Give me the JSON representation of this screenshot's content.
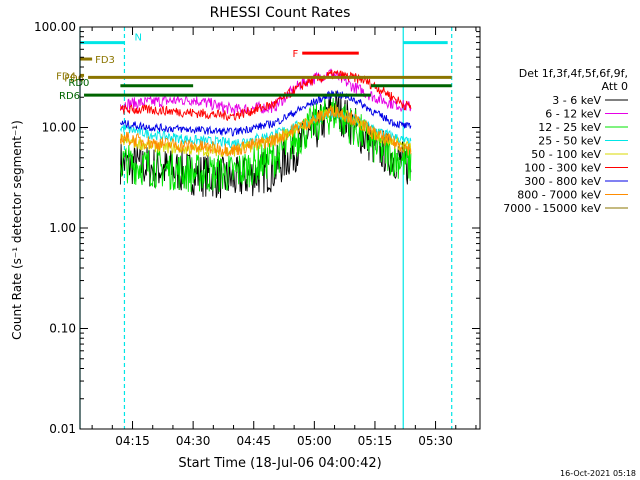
{
  "chart_data": {
    "type": "line",
    "title": "RHESSI Count Rates",
    "xlabel": "Start Time (18-Jul-06 04:00:42)",
    "ylabel": "Count Rate (s⁻¹ detector segment⁻¹)",
    "yscale": "log",
    "ylim": [
      0.01,
      100
    ],
    "xlim": [
      "04:02",
      "05:41"
    ],
    "y_ticks": [
      "0.01",
      "0.10",
      "1.00",
      "10.00",
      "100.00"
    ],
    "x_ticks": [
      "04:15",
      "04:30",
      "04:45",
      "05:00",
      "05:15",
      "05:30"
    ],
    "legend_header": [
      "Det 1f,3f,4f,5f,6f,9f,",
      "Att 0"
    ],
    "legend_position": "right",
    "grid": false,
    "timestamp": "16-Oct-2021 05:18",
    "series": [
      {
        "name": "3 - 6 keV",
        "color": "#000000",
        "x": [
          "04:12",
          "04:20",
          "04:30",
          "04:40",
          "04:50",
          "05:00",
          "05:05",
          "05:10",
          "05:15",
          "05:20",
          "05:24"
        ],
        "values": [
          4.5,
          4.0,
          3.5,
          3.0,
          3.8,
          9.0,
          16,
          10,
          6.5,
          5.0,
          4.0
        ]
      },
      {
        "name": "6 - 12 keV",
        "color": "#e600e6",
        "x": [
          "04:12",
          "04:20",
          "04:30",
          "04:40",
          "04:50",
          "04:57",
          "05:04",
          "05:10",
          "05:15",
          "05:20",
          "05:24"
        ],
        "values": [
          17,
          18,
          19,
          15,
          16,
          28,
          35,
          25,
          20,
          17,
          16
        ]
      },
      {
        "name": "12 - 25 keV",
        "color": "#00e600",
        "x": [
          "04:12",
          "04:20",
          "04:30",
          "04:40",
          "04:50",
          "05:00",
          "05:05",
          "05:10",
          "05:15",
          "05:20",
          "05:24"
        ],
        "values": [
          4.5,
          4.0,
          3.5,
          3.5,
          5.0,
          11,
          14,
          10,
          6.5,
          5.0,
          4.2
        ]
      },
      {
        "name": "25 - 50 keV",
        "color": "#00e6e6",
        "x": [
          "04:12",
          "04:20",
          "04:30",
          "04:40",
          "04:50",
          "05:00",
          "05:05",
          "05:10",
          "05:15",
          "05:20",
          "05:24"
        ],
        "values": [
          10,
          8.5,
          7.5,
          7.0,
          8.5,
          12,
          14,
          12,
          9.5,
          8.0,
          7.0
        ]
      },
      {
        "name": "50 - 100 keV",
        "color": "#d8d800",
        "x": [
          "04:12",
          "04:20",
          "04:30",
          "04:40",
          "04:50",
          "05:00",
          "05:05",
          "05:10",
          "05:15",
          "05:20",
          "05:24"
        ],
        "values": [
          7.5,
          6.5,
          6.0,
          5.8,
          7.5,
          12,
          15,
          12,
          8.5,
          7.0,
          6.3
        ]
      },
      {
        "name": "100 - 300 keV",
        "color": "#ff0000",
        "x": [
          "04:12",
          "04:20",
          "04:30",
          "04:40",
          "04:50",
          "04:58",
          "05:05",
          "05:12",
          "05:18",
          "05:22",
          "05:24"
        ],
        "values": [
          15,
          15,
          14,
          13,
          17,
          28,
          34,
          30,
          22,
          17,
          16
        ]
      },
      {
        "name": "300 - 800 keV",
        "color": "#0000e6",
        "x": [
          "04:12",
          "04:20",
          "04:30",
          "04:40",
          "04:50",
          "05:00",
          "05:05",
          "05:10",
          "05:15",
          "05:20",
          "05:24"
        ],
        "values": [
          11,
          10,
          9.5,
          9.0,
          11,
          18,
          22,
          19,
          14,
          11,
          10
        ]
      },
      {
        "name": "800 - 7000 keV",
        "color": "#ff8c00",
        "x": [
          "04:12",
          "04:20",
          "04:30",
          "04:40",
          "04:50",
          "05:00",
          "05:05",
          "05:10",
          "05:15",
          "05:20",
          "05:24"
        ],
        "values": [
          8.0,
          7.0,
          6.5,
          6.0,
          7.5,
          12,
          15,
          12,
          8.5,
          7.0,
          6.0
        ]
      },
      {
        "name": "7000 - 15000 keV",
        "color": "#8b7500",
        "x": [],
        "values": []
      }
    ],
    "bars": [
      {
        "label": "N",
        "color": "#00e6e6",
        "y": 70,
        "segments": [
          [
            "04:02",
            "04:13"
          ],
          [
            "05:22",
            "05:33"
          ]
        ]
      },
      {
        "label": "F",
        "color": "#ff0000",
        "y": 55,
        "segments": [
          [
            "04:57",
            "05:11"
          ]
        ]
      },
      {
        "label": "FD3",
        "color": "#8b7500",
        "y": 48,
        "segments": [
          [
            "04:02",
            "04:05"
          ]
        ]
      },
      {
        "label": "FD4",
        "color": "#8b7500",
        "y": 33,
        "segments": [
          [
            "04:02",
            "04:03"
          ]
        ]
      },
      {
        "label": "FD6",
        "color": "#8b7500",
        "y": 31.5,
        "segments": [
          [
            "04:04",
            "05:34"
          ]
        ]
      },
      {
        "label": "RD0",
        "color": "#006400",
        "y": 26,
        "segments": [
          [
            "04:12",
            "04:30"
          ],
          [
            "05:14",
            "05:34"
          ]
        ]
      },
      {
        "label": "RD6",
        "color": "#006400",
        "y": 21,
        "segments": [
          [
            "04:03",
            "05:14"
          ]
        ]
      }
    ],
    "vertical_lines": [
      {
        "x": "04:02",
        "color": "#00e6e6",
        "style": "solid"
      },
      {
        "x": "04:13",
        "color": "#00e6e6",
        "style": "dashed"
      },
      {
        "x": "05:22",
        "color": "#00e6e6",
        "style": "solid"
      },
      {
        "x": "05:34",
        "color": "#00e6e6",
        "style": "dashed"
      }
    ]
  }
}
